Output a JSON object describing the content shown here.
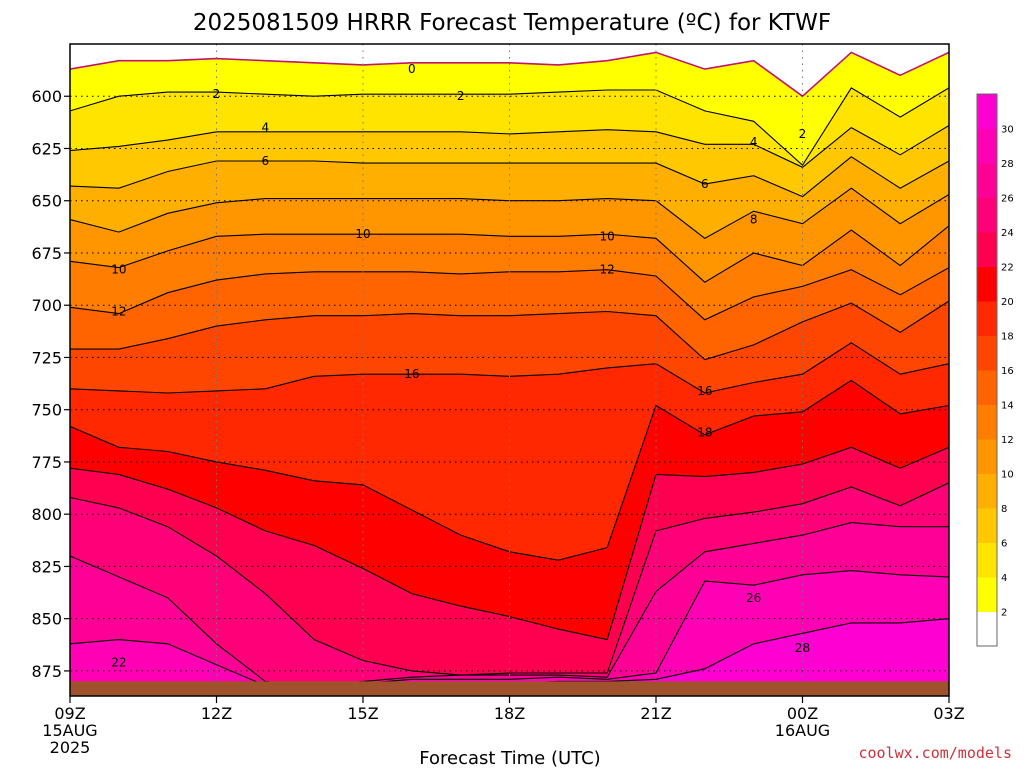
{
  "chart_data": {
    "type": "contour",
    "title": "2025081509 HRRR Forecast Temperature (ºC) for KTWF",
    "xlabel": "Forecast Time (UTC)",
    "credit": "coolwx.com/models",
    "x_ticks": [
      "09Z",
      "12Z",
      "15Z",
      "18Z",
      "21Z",
      "00Z",
      "03Z"
    ],
    "x_date_labels": [
      {
        "tick": "09Z",
        "lines": [
          "15AUG",
          "2025"
        ]
      },
      {
        "tick": "00Z",
        "lines": [
          "16AUG"
        ]
      }
    ],
    "y_ticks": [
      600,
      625,
      650,
      675,
      700,
      725,
      750,
      775,
      800,
      825,
      850,
      875
    ],
    "ylim_hpa": [
      887,
      575
    ],
    "x_hours": [
      0,
      18
    ],
    "contour_interval_c": 2,
    "colorbar": {
      "ticks": [
        2,
        4,
        6,
        8,
        10,
        12,
        14,
        16,
        18,
        20,
        22,
        24,
        26,
        28,
        30
      ],
      "colors": [
        "#ffffff",
        "#ffff00",
        "#ffe400",
        "#ffc800",
        "#ffaf00",
        "#ff9600",
        "#ff7d00",
        "#ff6400",
        "#ff4600",
        "#ff2800",
        "#ff0000",
        "#ff0050",
        "#ff0078",
        "#ff0096",
        "#ff00b4",
        "#ff00d2"
      ]
    },
    "ground_color": "#a0522d",
    "freezing_line_color": "#c0146e",
    "contour_labels": [
      {
        "value": "0",
        "hour": 7.0,
        "hpa": 587
      },
      {
        "value": "2",
        "hour": 3.0,
        "hpa": 599
      },
      {
        "value": "2",
        "hour": 8.0,
        "hpa": 600
      },
      {
        "value": "2",
        "hour": 15.0,
        "hpa": 618
      },
      {
        "value": "4",
        "hour": 4.0,
        "hpa": 615
      },
      {
        "value": "4",
        "hour": 14.0,
        "hpa": 622
      },
      {
        "value": "6",
        "hour": 4.0,
        "hpa": 631
      },
      {
        "value": "6",
        "hour": 13.0,
        "hpa": 642
      },
      {
        "value": "8",
        "hour": 14.0,
        "hpa": 659
      },
      {
        "value": "10",
        "hour": 6.0,
        "hpa": 666
      },
      {
        "value": "10",
        "hour": 11.0,
        "hpa": 667
      },
      {
        "value": "10",
        "hour": 1.0,
        "hpa": 683
      },
      {
        "value": "12",
        "hour": 11.0,
        "hpa": 683
      },
      {
        "value": "12",
        "hour": 1.0,
        "hpa": 703
      },
      {
        "value": "16",
        "hour": 7.0,
        "hpa": 733
      },
      {
        "value": "16",
        "hour": 13.0,
        "hpa": 741
      },
      {
        "value": "18",
        "hour": 13.0,
        "hpa": 761
      },
      {
        "value": "22",
        "hour": 1.0,
        "hpa": 871
      },
      {
        "value": "26",
        "hour": 14.0,
        "hpa": 840
      },
      {
        "value": "28",
        "hour": 15.0,
        "hpa": 864
      }
    ],
    "isotherms_hpa": {
      "hours": [
        0,
        1,
        2,
        3,
        4,
        5,
        6,
        7,
        8,
        9,
        10,
        11,
        12,
        13,
        14,
        15,
        16,
        17,
        18
      ],
      "t0": [
        587,
        583,
        583,
        582,
        583,
        584,
        585,
        584,
        584,
        584,
        585,
        583,
        579,
        587,
        583,
        600,
        579,
        590,
        579
      ],
      "t2": [
        607,
        600,
        598,
        598,
        599,
        600,
        599,
        599,
        599,
        599,
        598,
        597,
        597,
        607,
        612,
        633,
        596,
        610,
        596
      ],
      "t4": [
        626,
        624,
        621,
        617,
        617,
        617,
        617,
        617,
        617,
        618,
        617,
        616,
        617,
        623,
        623,
        634,
        615,
        628,
        614
      ],
      "t6": [
        643,
        644,
        636,
        631,
        631,
        631,
        632,
        632,
        632,
        632,
        632,
        632,
        632,
        642,
        638,
        648,
        629,
        644,
        631
      ],
      "t8": [
        659,
        665,
        656,
        651,
        649,
        649,
        649,
        649,
        649,
        650,
        650,
        649,
        650,
        668,
        655,
        661,
        644,
        661,
        647
      ],
      "t10": [
        679,
        682,
        674,
        667,
        666,
        666,
        666,
        666,
        666,
        667,
        667,
        666,
        668,
        689,
        675,
        681,
        664,
        681,
        662
      ],
      "t12": [
        701,
        704,
        694,
        688,
        685,
        684,
        684,
        684,
        685,
        684,
        684,
        683,
        686,
        707,
        696,
        691,
        683,
        695,
        682
      ],
      "t14": [
        721,
        721,
        716,
        710,
        707,
        705,
        705,
        704,
        705,
        705,
        704,
        703,
        705,
        726,
        719,
        708,
        699,
        713,
        698
      ],
      "t16": [
        740,
        741,
        742,
        741,
        740,
        734,
        733,
        733,
        733,
        734,
        733,
        730,
        728,
        742,
        737,
        733,
        718,
        733,
        728
      ],
      "t18": [
        758,
        768,
        770,
        775,
        779,
        784,
        786,
        798,
        810,
        818,
        822,
        816,
        748,
        762,
        753,
        751,
        736,
        752,
        748
      ],
      "t20": [
        778,
        781,
        788,
        797,
        808,
        815,
        826,
        838,
        844,
        849,
        855,
        860,
        781,
        782,
        780,
        776,
        768,
        778,
        768
      ],
      "t22": [
        792,
        797,
        806,
        820,
        838,
        860,
        870,
        875,
        877,
        876,
        876,
        876,
        808,
        802,
        799,
        795,
        787,
        796,
        785
      ],
      "t24": [
        820,
        830,
        840,
        862,
        880,
        883,
        880,
        878,
        877,
        877,
        877,
        878,
        837,
        818,
        814,
        810,
        804,
        806,
        806
      ],
      "t26": [
        862,
        860,
        862,
        872,
        882,
        882,
        881,
        879,
        879,
        879,
        878,
        879,
        876,
        832,
        834,
        829,
        827,
        829,
        830
      ],
      "t28": [
        885,
        883,
        883,
        883,
        883,
        883,
        882,
        882,
        881,
        881,
        880,
        880,
        879,
        874,
        862,
        857,
        852,
        852,
        850
      ]
    }
  }
}
